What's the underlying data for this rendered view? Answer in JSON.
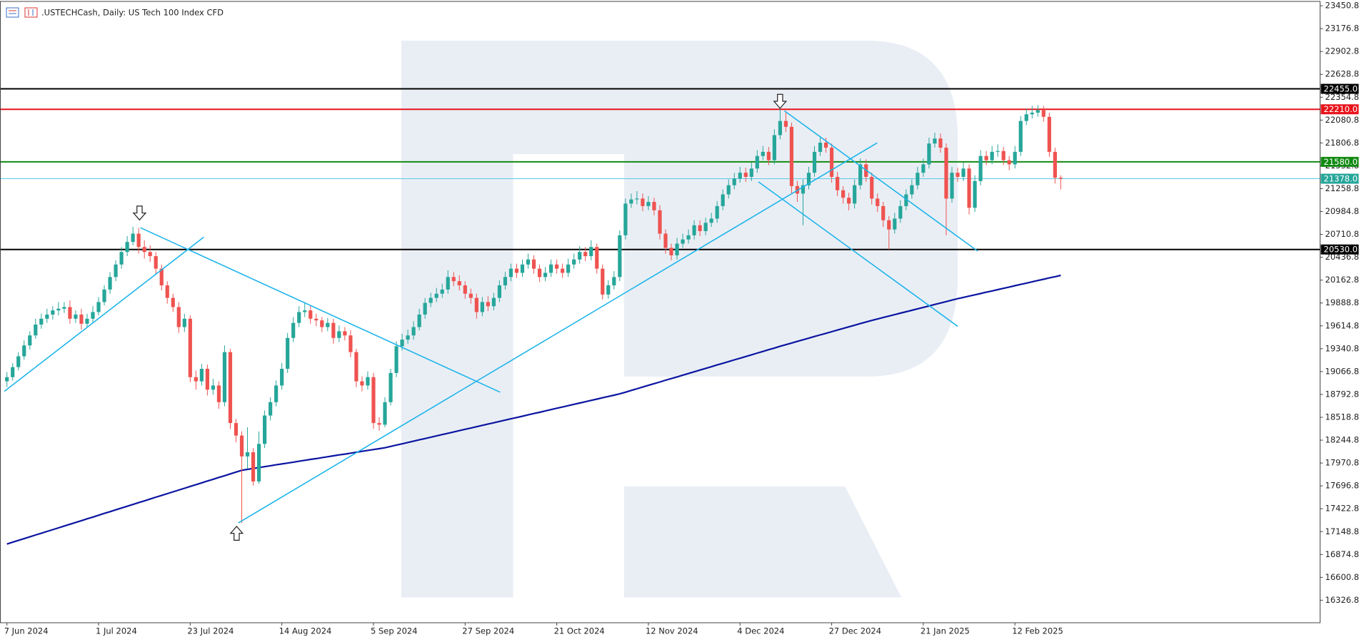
{
  "chart_data": {
    "type": "candlestick",
    "title": ".USTECHCash, Daily:  US Tech 100 Index CFD",
    "up_color": "#26a69a",
    "down_color": "#ef5350",
    "categories": [
      "7 Jun 2024",
      null,
      null,
      null,
      null,
      null,
      null,
      null,
      null,
      null,
      null,
      null,
      null,
      null,
      null,
      null,
      "1 Jul 2024",
      null,
      null,
      null,
      null,
      null,
      null,
      null,
      null,
      null,
      null,
      null,
      null,
      null,
      null,
      null,
      "23 Jul 2024",
      null,
      null,
      null,
      null,
      null,
      null,
      null,
      null,
      null,
      null,
      null,
      null,
      null,
      null,
      null,
      "14 Aug 2024",
      null,
      null,
      null,
      null,
      null,
      null,
      null,
      null,
      null,
      null,
      null,
      null,
      null,
      null,
      null,
      "5 Sep 2024",
      null,
      null,
      null,
      null,
      null,
      null,
      null,
      null,
      null,
      null,
      null,
      null,
      null,
      null,
      null,
      "27 Sep 2024",
      null,
      null,
      null,
      null,
      null,
      null,
      null,
      null,
      null,
      null,
      null,
      null,
      null,
      null,
      null,
      "21 Oct 2024",
      null,
      null,
      null,
      null,
      null,
      null,
      null,
      null,
      null,
      null,
      null,
      null,
      null,
      null,
      null,
      "12 Nov 2024",
      null,
      null,
      null,
      null,
      null,
      null,
      null,
      null,
      null,
      null,
      null,
      null,
      null,
      null,
      null,
      "4 Dec 2024",
      null,
      null,
      null,
      null,
      null,
      null,
      null,
      null,
      null,
      null,
      null,
      null,
      null,
      null,
      null,
      "27 Dec 2024",
      null,
      null,
      null,
      null,
      null,
      null,
      null,
      null,
      null,
      null,
      null,
      null,
      null,
      null,
      null,
      "21 Jan 2025",
      null,
      null,
      null,
      null,
      null,
      null,
      null,
      null,
      null,
      null,
      null,
      null,
      null,
      null,
      null,
      "12 Feb 2025",
      null,
      null,
      null,
      null,
      null,
      null,
      null,
      null
    ],
    "open": [
      18950,
      19000,
      19120,
      19250,
      19380,
      19500,
      19630,
      19700,
      19750,
      19800,
      19820,
      19840,
      19700,
      19750,
      19640,
      19700,
      19780,
      19900,
      20050,
      20200,
      20350,
      20500,
      20620,
      20720,
      20560,
      20500,
      20450,
      20300,
      20100,
      19950,
      19840,
      19600,
      19700,
      19000,
      18950,
      19100,
      18850,
      18900,
      18700,
      19300,
      18450,
      18300,
      18050,
      18100,
      17750,
      18200,
      18540,
      18700,
      18900,
      19100,
      19470,
      19650,
      19780,
      19800,
      19700,
      19680,
      19600,
      19650,
      19470,
      19550,
      19500,
      19300,
      18950,
      18900,
      19000,
      18450,
      18430,
      18700,
      19050,
      19370,
      19450,
      19500,
      19600,
      19750,
      19890,
      19950,
      20000,
      20050,
      20200,
      20150,
      20100,
      20000,
      19950,
      19780,
      19900,
      19850,
      19950,
      20100,
      20200,
      20300,
      20250,
      20350,
      20410,
      20300,
      20200,
      20250,
      20350,
      20300,
      20250,
      20350,
      20410,
      20500,
      20450,
      20560,
      20300,
      19990,
      20100,
      20200,
      20700,
      21080,
      21130,
      21140,
      21050,
      21100,
      21000,
      20720,
      20550,
      20460,
      20600,
      20650,
      20700,
      20820,
      20750,
      20850,
      20900,
      21050,
      21190,
      21300,
      21380,
      21450,
      21400,
      21500,
      21650,
      21700,
      21600,
      21900,
      22070,
      22000,
      21290,
      21200,
      21300,
      21450,
      21700,
      21810,
      21750,
      21400,
      21240,
      21150,
      21080,
      21300,
      21550,
      21400,
      21140,
      21050,
      20880,
      20770,
      20900,
      21050,
      21190,
      21300,
      21450,
      21550,
      21800,
      21860,
      21750,
      21140,
      21450,
      21400,
      21500,
      21030,
      21350,
      21650,
      21600,
      21700,
      21710,
      21600,
      21550,
      21700,
      22070,
      22150,
      22170,
      22200,
      22120,
      21700,
      21390
    ],
    "high": [
      19060,
      19170,
      19300,
      19440,
      19550,
      19700,
      19760,
      19820,
      19850,
      19900,
      19900,
      19920,
      19800,
      19820,
      19760,
      19850,
      19960,
      20100,
      20260,
      20400,
      20560,
      20690,
      20800,
      20790,
      20640,
      20580,
      20500,
      20350,
      20150,
      20000,
      19900,
      19760,
      19740,
      19080,
      19160,
      19150,
      18980,
      18950,
      19380,
      19340,
      18500,
      18350,
      18400,
      18150,
      18350,
      18600,
      18760,
      18960,
      19170,
      19530,
      19720,
      19850,
      19900,
      19860,
      19760,
      19720,
      19710,
      19700,
      19620,
      19600,
      19560,
      19340,
      19010,
      19070,
      19050,
      18520,
      18760,
      19100,
      19430,
      19520,
      19570,
      19670,
      19820,
      19950,
      20010,
      20070,
      20120,
      20280,
      20260,
      20220,
      20150,
      20060,
      20000,
      19960,
      19970,
      20010,
      20160,
      20260,
      20360,
      20360,
      20410,
      20480,
      20460,
      20350,
      20320,
      20410,
      20410,
      20360,
      20420,
      20480,
      20570,
      20560,
      20640,
      20600,
      20350,
      20160,
      20270,
      20760,
      21140,
      21200,
      21230,
      21200,
      21170,
      21150,
      21060,
      20770,
      20600,
      20670,
      20720,
      20770,
      20880,
      20880,
      20910,
      20970,
      21110,
      21250,
      21370,
      21450,
      21520,
      21510,
      21570,
      21720,
      21770,
      21760,
      21970,
      22250,
      22180,
      22050,
      21350,
      21370,
      21520,
      21770,
      21880,
      21870,
      21800,
      21460,
      21290,
      21210,
      21370,
      21620,
      21610,
      21450,
      21200,
      21100,
      20930,
      20970,
      21120,
      21250,
      21370,
      21520,
      21620,
      21870,
      21930,
      21920,
      21800,
      21520,
      21510,
      21570,
      21550,
      21420,
      21720,
      21710,
      21770,
      21790,
      21760,
      21650,
      21770,
      22130,
      22220,
      22250,
      22260,
      22250,
      22170,
      21750,
      21420
    ],
    "low": [
      18880,
      18960,
      19080,
      19210,
      19330,
      19460,
      19580,
      19650,
      19690,
      19740,
      19770,
      19640,
      19650,
      19570,
      19600,
      19650,
      19740,
      19860,
      20000,
      20150,
      20300,
      20450,
      20580,
      20480,
      20420,
      20380,
      20240,
      20040,
      19880,
      19780,
      19530,
      19540,
      18940,
      18850,
      18900,
      18780,
      18790,
      18620,
      18650,
      18380,
      18220,
      17250,
      17900,
      17700,
      17720,
      18150,
      18480,
      18650,
      18850,
      19050,
      19420,
      19600,
      19720,
      19640,
      19610,
      19540,
      19550,
      19400,
      19420,
      19440,
      19240,
      18880,
      18830,
      18850,
      18380,
      18360,
      18400,
      18660,
      19000,
      19320,
      19400,
      19450,
      19560,
      19700,
      19840,
      19900,
      19950,
      20000,
      20090,
      20040,
      19940,
      19880,
      19700,
      19730,
      19790,
      19800,
      19900,
      20050,
      20150,
      20190,
      20200,
      20300,
      20240,
      20140,
      20150,
      20200,
      20240,
      20190,
      20200,
      20300,
      20360,
      20390,
      20400,
      20240,
      19930,
      19940,
      20050,
      20150,
      20650,
      21030,
      21070,
      20990,
      21000,
      20940,
      20650,
      20480,
      20400,
      20410,
      20550,
      20600,
      20650,
      20690,
      20700,
      20800,
      20850,
      21000,
      21140,
      21250,
      21330,
      21340,
      21350,
      21450,
      21600,
      21540,
      21550,
      21850,
      21940,
      21200,
      21100,
      20820,
      21250,
      21400,
      21650,
      21690,
      21330,
      21170,
      21080,
      21000,
      21020,
      21250,
      21340,
      21070,
      20980,
      20800,
      20530,
      20720,
      20850,
      21000,
      21140,
      21250,
      21400,
      21500,
      21750,
      21690,
      20700,
      21090,
      21340,
      21350,
      20950,
      20980,
      21300,
      21540,
      21550,
      21640,
      21540,
      21480,
      21500,
      21650,
      22020,
      22100,
      22120,
      22060,
      21640,
      21320,
      21250
    ],
    "close": [
      19000,
      19120,
      19250,
      19380,
      19500,
      19630,
      19700,
      19750,
      19800,
      19820,
      19840,
      19700,
      19750,
      19640,
      19700,
      19780,
      19900,
      20050,
      20200,
      20350,
      20500,
      20620,
      20720,
      20560,
      20500,
      20450,
      20300,
      20100,
      19950,
      19840,
      19600,
      19700,
      19000,
      18950,
      19100,
      18850,
      18900,
      18700,
      19300,
      18450,
      18300,
      18050,
      18100,
      17750,
      18200,
      18540,
      18700,
      18900,
      19100,
      19470,
      19650,
      19780,
      19800,
      19700,
      19680,
      19600,
      19650,
      19470,
      19550,
      19500,
      19300,
      18950,
      18900,
      19000,
      18450,
      18430,
      18700,
      19050,
      19370,
      19450,
      19500,
      19600,
      19750,
      19890,
      19950,
      20000,
      20050,
      20200,
      20150,
      20100,
      20000,
      19950,
      19780,
      19900,
      19850,
      19950,
      20100,
      20200,
      20300,
      20250,
      20350,
      20410,
      20300,
      20200,
      20250,
      20350,
      20300,
      20250,
      20350,
      20410,
      20500,
      20450,
      20560,
      20300,
      19990,
      20100,
      20200,
      20700,
      21080,
      21130,
      21140,
      21050,
      21100,
      21000,
      20720,
      20550,
      20460,
      20600,
      20650,
      20700,
      20820,
      20750,
      20850,
      20900,
      21050,
      21190,
      21300,
      21380,
      21450,
      21400,
      21500,
      21650,
      21700,
      21600,
      21900,
      22070,
      22000,
      21290,
      21200,
      21300,
      21450,
      21700,
      21810,
      21750,
      21400,
      21240,
      21150,
      21080,
      21300,
      21550,
      21400,
      21140,
      21050,
      20880,
      20770,
      20900,
      21050,
      21190,
      21300,
      21450,
      21550,
      21800,
      21860,
      21750,
      21140,
      21450,
      21400,
      21500,
      21030,
      21350,
      21650,
      21600,
      21700,
      21710,
      21600,
      21550,
      21700,
      22070,
      22150,
      22170,
      22200,
      22120,
      21700,
      21390,
      21378
    ],
    "ma": {
      "color": "#0a14a0",
      "values": [
        17000,
        17022,
        17043,
        17065,
        17086,
        17108,
        17129,
        17151,
        17172,
        17194,
        17216,
        17237,
        17259,
        17280,
        17302,
        17323,
        17345,
        17367,
        17388,
        17410,
        17431,
        17453,
        17474,
        17496,
        17517,
        17539,
        17561,
        17582,
        17604,
        17625,
        17647,
        17668,
        17690,
        17712,
        17733,
        17755,
        17776,
        17798,
        17819,
        17841,
        17862,
        17884,
        17895,
        17906,
        17916,
        17927,
        17938,
        17949,
        17960,
        17970,
        17981,
        17992,
        18003,
        18014,
        18024,
        18035,
        18046,
        18057,
        18068,
        18078,
        18089,
        18100,
        18111,
        18122,
        18132,
        18143,
        18154,
        18170,
        18186,
        18201,
        18217,
        18233,
        18249,
        18264,
        18280,
        18296,
        18312,
        18327,
        18343,
        18359,
        18375,
        18390,
        18406,
        18422,
        18438,
        18453,
        18469,
        18485,
        18501,
        18516,
        18532,
        18548,
        18564,
        18579,
        18595,
        18611,
        18627,
        18642,
        18658,
        18674,
        18690,
        18705,
        18721,
        18737,
        18753,
        18768,
        18784,
        18800,
        18820,
        18841,
        18861,
        18881,
        18902,
        18922,
        18942,
        18963,
        18983,
        19003,
        19024,
        19044,
        19064,
        19085,
        19105,
        19125,
        19146,
        19166,
        19186,
        19207,
        19227,
        19247,
        19268,
        19288,
        19308,
        19329,
        19349,
        19370,
        19389,
        19409,
        19428,
        19448,
        19467,
        19487,
        19506,
        19525,
        19545,
        19564,
        19584,
        19603,
        19622,
        19642,
        19661,
        19680,
        19697,
        19715,
        19732,
        19749,
        19767,
        19784,
        19801,
        19819,
        19836,
        19853,
        19871,
        19888,
        19905,
        19923,
        19940,
        19956,
        19971,
        19987,
        20002,
        20018,
        20033,
        20049,
        20064,
        20080,
        20096,
        20111,
        20127,
        20142,
        20158,
        20173,
        20189,
        20204,
        20220
      ]
    },
    "levels": [
      {
        "value": 22455,
        "label": "22455.0",
        "color": "#000000",
        "tag_color": "#000000",
        "width": 2
      },
      {
        "value": 22210,
        "label": "22210.0",
        "color": "#e8141c",
        "tag_color": "#e8141c",
        "width": 2
      },
      {
        "value": 21580,
        "label": "21580.0",
        "color": "#128a12",
        "tag_color": "#128a12",
        "width": 2
      },
      {
        "value": 21378,
        "label": "21378.0",
        "color": "#5ec8e6",
        "tag_color": "#26a69a",
        "width": 1
      },
      {
        "value": 20530,
        "label": "20530.0",
        "color": "#000000",
        "tag_color": "#000000",
        "width": 2
      }
    ],
    "ylim": [
      16056.7,
      23502.7
    ],
    "yticks": [
      23450.8,
      23176.8,
      22902.8,
      22628.8,
      22354.8,
      22080.8,
      21806.8,
      21532.8,
      21258.8,
      20984.8,
      20710.8,
      20436.8,
      20162.8,
      19888.8,
      19614.8,
      19340.8,
      19066.8,
      18792.8,
      18518.8,
      18244.8,
      17970.8,
      17696.8,
      17422.8,
      17148.8,
      16874.8,
      16600.8,
      16326.8
    ]
  }
}
